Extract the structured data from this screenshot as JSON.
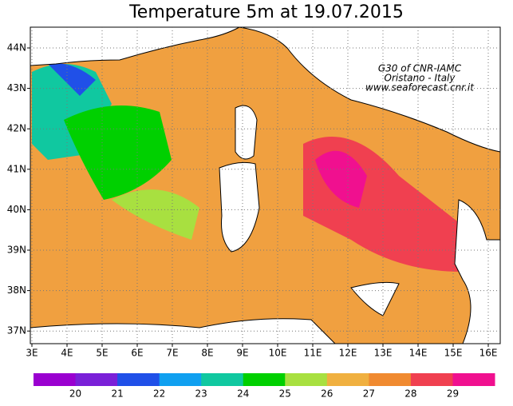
{
  "title": "Temperature 5m at 19.07.2015",
  "credit": [
    "G30 of CNR-IAMC",
    "Oristano - Italy",
    "www.seaforecast.cnr.it"
  ],
  "lat_labels": [
    "44N",
    "43N",
    "42N",
    "41N",
    "40N",
    "39N",
    "38N",
    "37N"
  ],
  "lon_labels": [
    "3E",
    "4E",
    "5E",
    "6E",
    "7E",
    "8E",
    "9E",
    "10E",
    "11E",
    "12E",
    "13E",
    "14E",
    "15E",
    "16E"
  ],
  "colorbar": {
    "colors": [
      "#9a00d0",
      "#7a20d8",
      "#2050e8",
      "#10a0f0",
      "#10c8a0",
      "#00d000",
      "#a8e040",
      "#f0b040",
      "#f08a30",
      "#f04050",
      "#f0108f"
    ],
    "labels": [
      20,
      21,
      22,
      23,
      24,
      25,
      26,
      27,
      28,
      29
    ]
  }
}
